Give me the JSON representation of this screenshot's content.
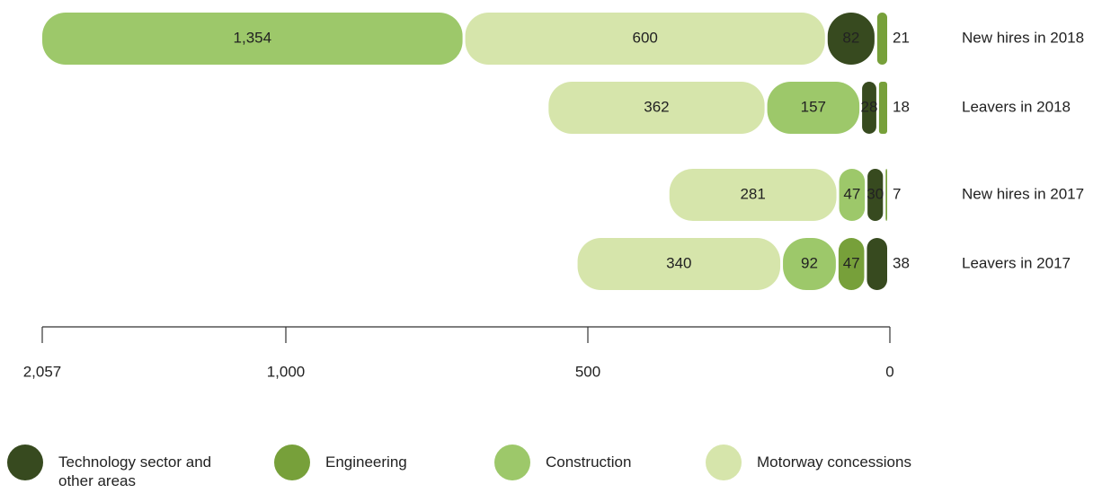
{
  "chart_data": {
    "type": "stacked-bar-horizontal",
    "categories": [
      "New hires in 2018",
      "Leavers in 2018",
      "New hires in 2017",
      "Leavers in 2017"
    ],
    "series": [
      {
        "name": "Technology sector and other areas",
        "color": "#374a1f",
        "values": [
          82,
          28,
          30,
          38
        ]
      },
      {
        "name": "Engineering",
        "color": "#77a03a",
        "values": [
          21,
          18,
          7,
          47
        ]
      },
      {
        "name": "Construction",
        "color": "#9dc86a",
        "values": [
          1354,
          157,
          47,
          92
        ],
        "value_labels": [
          "1,354",
          "157",
          "47",
          "92"
        ]
      },
      {
        "name": "Motorway concessions",
        "color": "#d6e5ab",
        "values": [
          600,
          362,
          281,
          340
        ]
      }
    ],
    "xlim": [
      2057,
      0
    ],
    "xticks": [
      {
        "value": 2057,
        "label": "2,057"
      },
      {
        "value": 1000,
        "label": "1,000"
      },
      500,
      0
    ],
    "legend": "bottom"
  }
}
